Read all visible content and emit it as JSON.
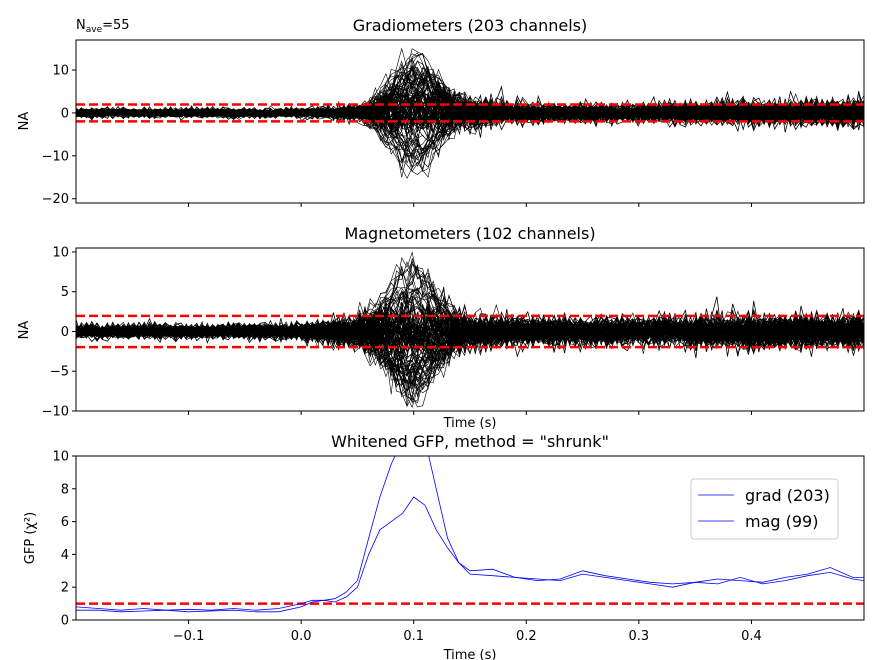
{
  "nave": {
    "label": "N",
    "sub": "ave",
    "value": "=55"
  },
  "chart_data": [
    {
      "type": "line",
      "title": "Gradiometers (203 channels)",
      "xlabel": "",
      "ylabel": "NA",
      "xlim": [
        -0.2,
        0.5
      ],
      "ylim": [
        -21,
        17
      ],
      "yticks": [
        -20,
        -10,
        0,
        10
      ],
      "ytick_labels": [
        "−20",
        "−10",
        "0",
        "10"
      ],
      "xticks": [
        -0.1,
        0.0,
        0.1,
        0.2,
        0.3,
        0.4
      ],
      "xtick_labels_shown": false,
      "reference_lines": [
        1.96,
        -1.96
      ],
      "reference_color": "#ff0000",
      "trace_color": "#000000",
      "traces": 203,
      "envelope": {
        "x": [
          -0.2,
          -0.1,
          0.0,
          0.05,
          0.08,
          0.1,
          0.13,
          0.2,
          0.3,
          0.4,
          0.5
        ],
        "max_abs": [
          3,
          3,
          3,
          5,
          12,
          15,
          12,
          6,
          6,
          8,
          9
        ]
      }
    },
    {
      "type": "line",
      "title": "Magnetometers (102 channels)",
      "xlabel": "Time (s)",
      "ylabel": "NA",
      "xlim": [
        -0.2,
        0.5
      ],
      "ylim": [
        -10,
        10.5
      ],
      "yticks": [
        -10,
        -5,
        0,
        5,
        10
      ],
      "ytick_labels": [
        "−10",
        "−5",
        "0",
        "5",
        "10"
      ],
      "xticks": [
        -0.1,
        0.0,
        0.1,
        0.2,
        0.3,
        0.4
      ],
      "xtick_labels_shown": false,
      "reference_lines": [
        1.96,
        -1.96
      ],
      "reference_color": "#ff0000",
      "trace_color": "#000000",
      "traces": 102,
      "envelope": {
        "x": [
          -0.2,
          -0.1,
          0.0,
          0.05,
          0.08,
          0.1,
          0.13,
          0.2,
          0.3,
          0.4,
          0.5
        ],
        "max_abs": [
          2.5,
          2.5,
          3,
          6,
          9,
          9.5,
          7,
          5,
          5,
          6,
          6
        ]
      }
    },
    {
      "type": "line",
      "title": "Whitened GFP, method = \"shrunk\"",
      "xlabel": "Time (s)",
      "ylabel": "GFP (χ²)",
      "xlim": [
        -0.2,
        0.5
      ],
      "ylim": [
        0,
        10
      ],
      "yticks": [
        0,
        2,
        4,
        6,
        8,
        10
      ],
      "ytick_labels": [
        "0",
        "2",
        "4",
        "6",
        "8",
        "10"
      ],
      "xticks": [
        -0.1,
        0.0,
        0.1,
        0.2,
        0.3,
        0.4
      ],
      "xtick_labels": [
        "−0.1",
        "0.0",
        "0.1",
        "0.2",
        "0.3",
        "0.4"
      ],
      "reference_lines": [
        1.0
      ],
      "reference_color": "#ff0000",
      "legend": {
        "placement": "top-right",
        "entries": [
          "grad (203)",
          "mag (99)"
        ]
      },
      "series": [
        {
          "name": "grad (203)",
          "color": "#0000ff",
          "x": [
            -0.2,
            -0.18,
            -0.16,
            -0.14,
            -0.12,
            -0.1,
            -0.08,
            -0.06,
            -0.04,
            -0.02,
            0.0,
            0.01,
            0.02,
            0.03,
            0.04,
            0.05,
            0.06,
            0.07,
            0.08,
            0.09,
            0.1,
            0.11,
            0.12,
            0.13,
            0.14,
            0.15,
            0.17,
            0.19,
            0.21,
            0.23,
            0.25,
            0.27,
            0.29,
            0.31,
            0.33,
            0.35,
            0.37,
            0.39,
            0.41,
            0.43,
            0.45,
            0.47,
            0.49,
            0.5
          ],
          "y": [
            0.8,
            0.7,
            0.6,
            0.7,
            0.6,
            0.65,
            0.6,
            0.7,
            0.6,
            0.7,
            1.0,
            1.2,
            1.2,
            1.3,
            1.7,
            2.4,
            5.0,
            7.5,
            9.5,
            11.0,
            11.5,
            11.0,
            8.0,
            5.0,
            3.5,
            3.0,
            3.1,
            2.6,
            2.4,
            2.5,
            3.0,
            2.7,
            2.5,
            2.3,
            2.2,
            2.3,
            2.5,
            2.4,
            2.3,
            2.6,
            2.8,
            3.2,
            2.6,
            2.6
          ]
        },
        {
          "name": "mag (99)",
          "color": "#0000ff",
          "x": [
            -0.2,
            -0.18,
            -0.16,
            -0.14,
            -0.12,
            -0.1,
            -0.08,
            -0.06,
            -0.04,
            -0.02,
            0.0,
            0.01,
            0.02,
            0.03,
            0.04,
            0.05,
            0.06,
            0.07,
            0.08,
            0.09,
            0.1,
            0.11,
            0.12,
            0.13,
            0.14,
            0.15,
            0.17,
            0.19,
            0.21,
            0.23,
            0.25,
            0.27,
            0.29,
            0.31,
            0.33,
            0.35,
            0.37,
            0.39,
            0.41,
            0.43,
            0.45,
            0.47,
            0.49,
            0.5
          ],
          "y": [
            0.6,
            0.6,
            0.5,
            0.55,
            0.6,
            0.5,
            0.55,
            0.6,
            0.5,
            0.5,
            0.8,
            1.1,
            1.2,
            1.1,
            1.4,
            2.0,
            4.0,
            5.5,
            6.0,
            6.5,
            7.5,
            7.0,
            5.5,
            4.4,
            3.5,
            2.8,
            2.7,
            2.6,
            2.5,
            2.4,
            2.8,
            2.6,
            2.4,
            2.2,
            2.0,
            2.3,
            2.2,
            2.6,
            2.2,
            2.4,
            2.7,
            2.9,
            2.5,
            2.4
          ]
        }
      ]
    }
  ]
}
